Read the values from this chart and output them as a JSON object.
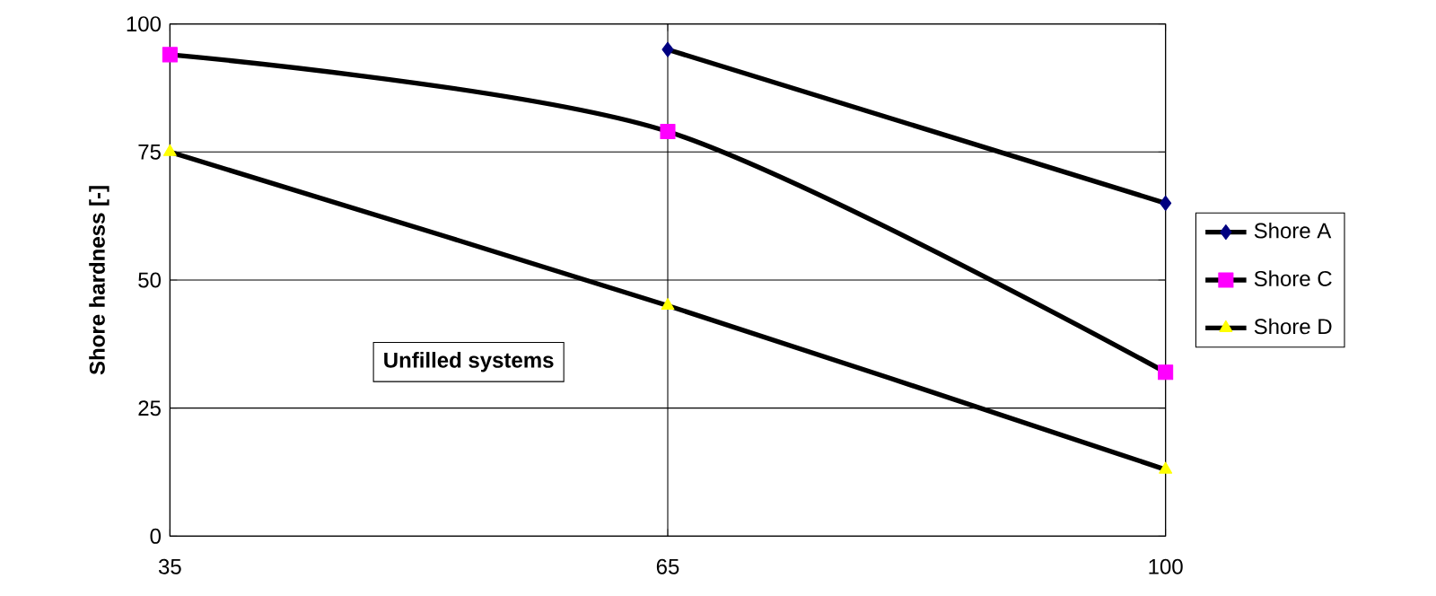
{
  "chart_data": {
    "type": "line",
    "ylabel": "Shore hardness [-]",
    "categories": [
      "35",
      "65",
      "100"
    ],
    "ylim": [
      0,
      100
    ],
    "yticks": [
      0,
      25,
      50,
      75,
      100
    ],
    "grid": true,
    "legend": "right",
    "annotations": [
      "Unfilled systems"
    ],
    "series": [
      {
        "name": "Shore A",
        "color": "#000080",
        "marker": "diamond",
        "values": [
          null,
          95,
          65
        ]
      },
      {
        "name": "Shore C",
        "color": "#ff00ff",
        "marker": "square",
        "values": [
          94,
          79,
          32
        ]
      },
      {
        "name": "Shore D",
        "color": "#ffff00",
        "marker": "triangle",
        "values": [
          75,
          45,
          13
        ]
      }
    ]
  }
}
